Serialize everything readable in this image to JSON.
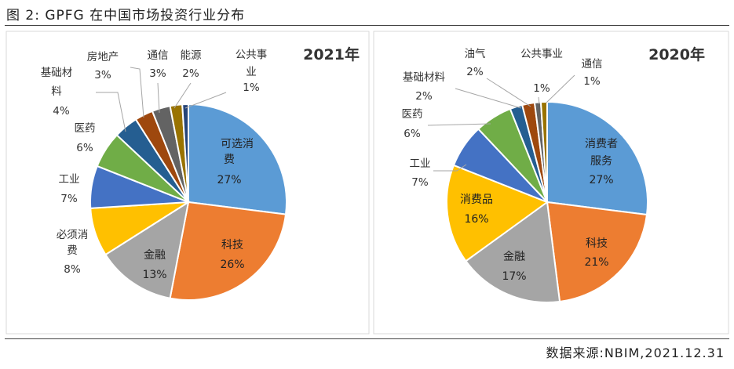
{
  "figure_title": "图 2: GPFG 在中国市场投资行业分布",
  "source": "数据来源:NBIM,2021.12.31",
  "chart_data": [
    {
      "type": "pie",
      "title": "2021年",
      "slices": [
        {
          "name": "可选消费",
          "value": 27,
          "label": "27%",
          "color": "#5b9bd5"
        },
        {
          "name": "科技",
          "value": 26,
          "label": "26%",
          "color": "#ed7d31"
        },
        {
          "name": "金融",
          "value": 13,
          "label": "13%",
          "color": "#a5a5a5"
        },
        {
          "name": "必须消费",
          "value": 8,
          "label": "8%",
          "color": "#ffc000"
        },
        {
          "name": "工业",
          "value": 7,
          "label": "7%",
          "color": "#4472c4"
        },
        {
          "name": "医药",
          "value": 6,
          "label": "6%",
          "color": "#70ad47"
        },
        {
          "name": "基础材料",
          "value": 4,
          "label": "4%",
          "color": "#255e91"
        },
        {
          "name": "房地产",
          "value": 3,
          "label": "3%",
          "color": "#9e480e"
        },
        {
          "name": "通信",
          "value": 3,
          "label": "3%",
          "color": "#636363"
        },
        {
          "name": "能源",
          "value": 2,
          "label": "2%",
          "color": "#997300"
        },
        {
          "name": "公共事业",
          "value": 1,
          "label": "1%",
          "color": "#264478"
        }
      ]
    },
    {
      "type": "pie",
      "title": "2020年",
      "slices": [
        {
          "name": "消费者服务",
          "value": 27,
          "label": "27%",
          "color": "#5b9bd5"
        },
        {
          "name": "科技",
          "value": 21,
          "label": "21%",
          "color": "#ed7d31"
        },
        {
          "name": "金融",
          "value": 17,
          "label": "17%",
          "color": "#a5a5a5"
        },
        {
          "name": "消费品",
          "value": 16,
          "label": "16%",
          "color": "#ffc000"
        },
        {
          "name": "工业",
          "value": 7,
          "label": "7%",
          "color": "#4472c4"
        },
        {
          "name": "医药",
          "value": 6,
          "label": "6%",
          "color": "#70ad47"
        },
        {
          "name": "基础材料",
          "value": 2,
          "label": "2%",
          "color": "#255e91"
        },
        {
          "name": "油气",
          "value": 2,
          "label": "2%",
          "color": "#9e480e"
        },
        {
          "name": "公共事业",
          "value": 1,
          "label": "1%",
          "color": "#636363"
        },
        {
          "name": "通信",
          "value": 1,
          "label": "1%",
          "color": "#997300"
        }
      ]
    }
  ]
}
